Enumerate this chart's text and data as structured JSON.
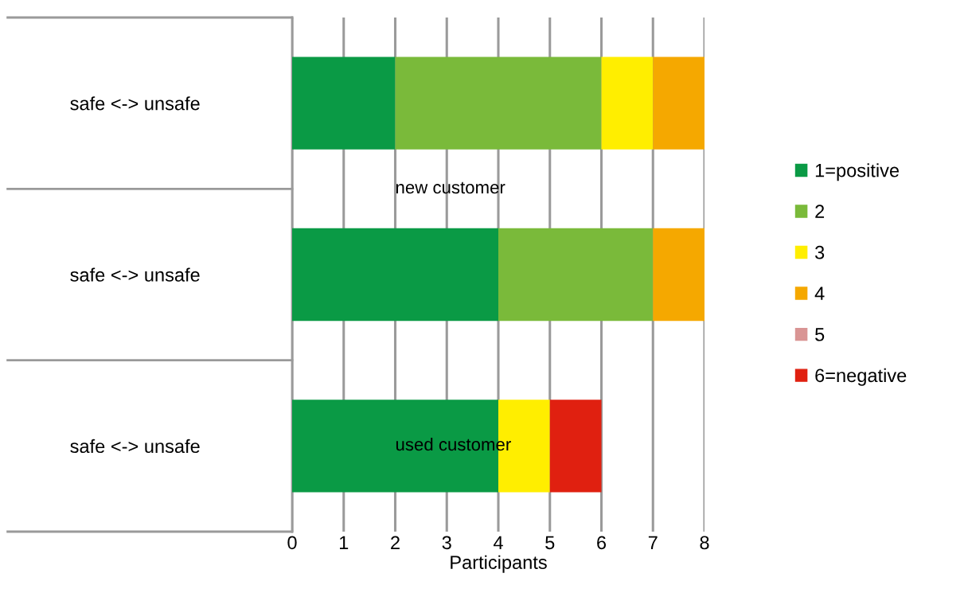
{
  "chart_data": {
    "type": "bar",
    "orientation": "horizontal",
    "stacked": true,
    "xlabel": "Participants",
    "categories": [
      "safe <-> unsafe",
      "safe <-> unsafe",
      "safe <-> unsafe"
    ],
    "series": [
      {
        "name": "1=positive",
        "color": "#0a9a45",
        "values": [
          2,
          4,
          4
        ]
      },
      {
        "name": "2",
        "color": "#7aba3a",
        "values": [
          4,
          3,
          0
        ]
      },
      {
        "name": "3",
        "color": "#ffee00",
        "values": [
          1,
          0,
          1
        ]
      },
      {
        "name": "4",
        "color": "#f5a800",
        "values": [
          1,
          1,
          0
        ]
      },
      {
        "name": "5",
        "color": "#d99594",
        "values": [
          0,
          0,
          0
        ]
      },
      {
        "name": "6=negative",
        "color": "#e02010",
        "values": [
          0,
          0,
          1
        ]
      }
    ],
    "annotations": [
      "new customer",
      "used customer"
    ],
    "xlim": [
      0,
      8
    ],
    "xticks": [
      0,
      1,
      2,
      3,
      4,
      5,
      6,
      7,
      8
    ],
    "grid": "x",
    "legend": "right"
  }
}
